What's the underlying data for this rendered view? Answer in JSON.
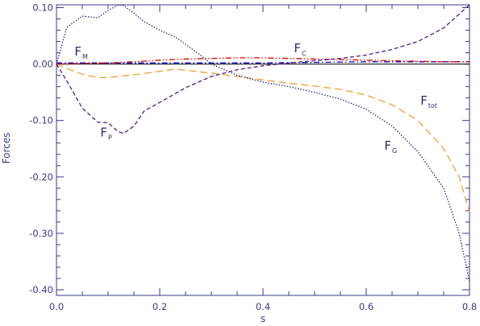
{
  "chart_data": {
    "type": "line",
    "title": "",
    "xlabel": "s",
    "ylabel": "Forces",
    "xlim": [
      0.0,
      0.8
    ],
    "ylim": [
      -0.41,
      0.105
    ],
    "x_ticks": [
      {
        "value": 0.0,
        "label": "0.0"
      },
      {
        "value": 0.2,
        "label": "0.2"
      },
      {
        "value": 0.4,
        "label": "0.4"
      },
      {
        "value": 0.6,
        "label": "0.6"
      },
      {
        "value": 0.8,
        "label": "0.8"
      }
    ],
    "y_ticks": [
      {
        "value": 0.1,
        "label": "0.10"
      },
      {
        "value": 0.0,
        "label": "0.00"
      },
      {
        "value": -0.1,
        "label": "-0.10"
      },
      {
        "value": -0.2,
        "label": "-0.20"
      },
      {
        "value": -0.3,
        "label": "-0.30"
      },
      {
        "value": -0.4,
        "label": "-0.40"
      }
    ],
    "grid": false,
    "legend": "none",
    "annotations": [
      {
        "main": "F",
        "sub": "M",
        "at": [
          0.035,
          0.015
        ]
      },
      {
        "main": "F",
        "sub": "C",
        "at": [
          0.46,
          0.021
        ]
      },
      {
        "main": "F",
        "sub": "tot",
        "at": [
          0.705,
          -0.072
        ]
      },
      {
        "main": "F",
        "sub": "P",
        "at": [
          0.085,
          -0.128
        ]
      },
      {
        "main": "F",
        "sub": "G",
        "at": [
          0.635,
          -0.152
        ]
      }
    ],
    "series": [
      {
        "label": "F_M",
        "color": "#0000cc",
        "dash": "dashdot",
        "x": [
          0.0,
          0.1,
          0.2,
          0.3,
          0.4,
          0.5,
          0.6,
          0.7,
          0.8
        ],
        "y": [
          0.002,
          0.002,
          0.002,
          0.002,
          0.002,
          0.003,
          0.004,
          0.004,
          0.004
        ]
      },
      {
        "label": "F_C",
        "color": "#dd0000",
        "dash": "dashdotdot",
        "x": [
          0.0,
          0.05,
          0.1,
          0.15,
          0.2,
          0.25,
          0.3,
          0.35,
          0.4,
          0.45,
          0.5,
          0.55,
          0.6,
          0.65,
          0.7,
          0.75,
          0.8
        ],
        "y": [
          0.0,
          0.001,
          0.002,
          0.004,
          0.007,
          0.009,
          0.01,
          0.011,
          0.011,
          0.01,
          0.009,
          0.008,
          0.007,
          0.006,
          0.005,
          0.004,
          0.004
        ]
      },
      {
        "label": "F_tot",
        "color": "#f0a030",
        "dash": "longdash",
        "x": [
          0.0,
          0.02,
          0.05,
          0.08,
          0.1,
          0.15,
          0.2,
          0.23,
          0.27,
          0.3,
          0.35,
          0.4,
          0.45,
          0.5,
          0.55,
          0.6,
          0.65,
          0.7,
          0.75,
          0.78,
          0.8
        ],
        "y": [
          0.0,
          -0.008,
          -0.018,
          -0.024,
          -0.024,
          -0.019,
          -0.013,
          -0.009,
          -0.013,
          -0.016,
          -0.022,
          -0.028,
          -0.034,
          -0.039,
          -0.045,
          -0.055,
          -0.072,
          -0.1,
          -0.15,
          -0.2,
          -0.262
        ]
      },
      {
        "label": "F_P",
        "color": "#551a8b",
        "dash": "dash",
        "x": [
          0.0,
          0.02,
          0.05,
          0.08,
          0.1,
          0.12,
          0.13,
          0.15,
          0.17,
          0.2,
          0.25,
          0.3,
          0.35,
          0.4,
          0.45,
          0.5,
          0.55,
          0.6,
          0.65,
          0.7,
          0.75,
          0.8
        ],
        "y": [
          0.0,
          -0.03,
          -0.078,
          -0.103,
          -0.104,
          -0.12,
          -0.123,
          -0.11,
          -0.083,
          -0.068,
          -0.042,
          -0.022,
          -0.01,
          -0.003,
          0.002,
          0.006,
          0.01,
          0.016,
          0.026,
          0.04,
          0.064,
          0.105
        ]
      },
      {
        "label": "F_G",
        "color": "#1a1a7a",
        "dash": "dotted",
        "x": [
          0.0,
          0.02,
          0.05,
          0.08,
          0.1,
          0.12,
          0.13,
          0.15,
          0.17,
          0.2,
          0.23,
          0.25,
          0.28,
          0.3,
          0.35,
          0.4,
          0.45,
          0.5,
          0.55,
          0.6,
          0.65,
          0.7,
          0.75,
          0.78,
          0.8
        ],
        "y": [
          0.0,
          0.065,
          0.085,
          0.082,
          0.095,
          0.105,
          0.104,
          0.09,
          0.075,
          0.06,
          0.048,
          0.035,
          0.015,
          0.0,
          -0.02,
          -0.032,
          -0.04,
          -0.05,
          -0.062,
          -0.08,
          -0.11,
          -0.155,
          -0.22,
          -0.3,
          -0.385
        ]
      }
    ]
  }
}
